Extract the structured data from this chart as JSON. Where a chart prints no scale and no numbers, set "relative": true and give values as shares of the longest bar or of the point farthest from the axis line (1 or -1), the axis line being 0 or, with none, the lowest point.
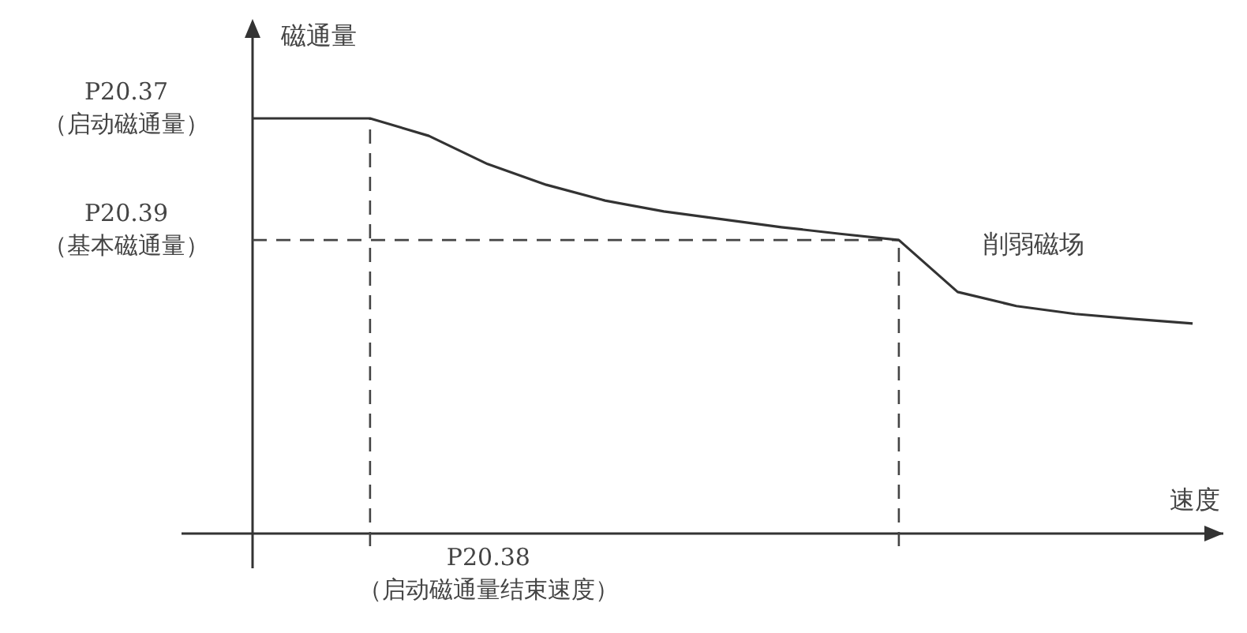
{
  "chart_data": {
    "type": "line",
    "relative": true,
    "xlabel": "速度",
    "ylabel": "磁通量",
    "categories": [
      null,
      null,
      null,
      null,
      null,
      null,
      null,
      null,
      null,
      null,
      null,
      null,
      null,
      null,
      null,
      null,
      null
    ],
    "series": [
      {
        "color": "#333333",
        "values": [
          1,
          1,
          1,
          0.958,
          0.89,
          0.84,
          0.802,
          0.776,
          0.757,
          0.738,
          0.722,
          0.707,
          0.582,
          0.548,
          0.529,
          0.517,
          0.506
        ]
      }
    ],
    "ref_lines": [
      {
        "axis": "y",
        "value": 0.707,
        "label": "P20.39\n（基本磁通量）",
        "line_style": "dashed"
      }
    ],
    "annotations": [
      "P20.37\n（启动磁通量）",
      "削弱磁场",
      "P20.38\n（启动磁通量结束速度）"
    ]
  }
}
